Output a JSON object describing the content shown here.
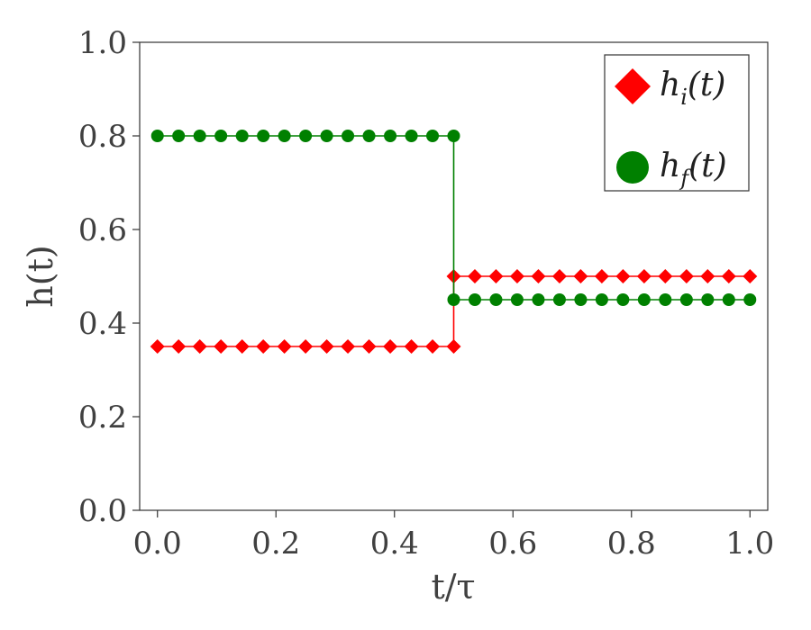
{
  "chart_data": {
    "type": "line",
    "xlabel": "t/τ",
    "ylabel": "h(t)",
    "xlim": [
      -0.03,
      1.03
    ],
    "ylim": [
      0.0,
      1.0
    ],
    "x_ticks": [
      "0.0",
      "0.2",
      "0.4",
      "0.6",
      "0.8",
      "1.0"
    ],
    "y_ticks": [
      "0.0",
      "0.2",
      "0.4",
      "0.6",
      "0.8",
      "1.0"
    ],
    "grid": false,
    "legend_position": "top-right",
    "series": [
      {
        "name_base": "h",
        "name_sub": "i",
        "name_suffix": "(t)",
        "color": "#ff0000",
        "marker": "diamond",
        "x": [
          0.0,
          0.0357,
          0.0714,
          0.1071,
          0.1429,
          0.1786,
          0.2143,
          0.25,
          0.2857,
          0.3214,
          0.3571,
          0.3929,
          0.4286,
          0.4643,
          0.5,
          0.5,
          0.5357,
          0.5714,
          0.6071,
          0.6429,
          0.6786,
          0.7143,
          0.75,
          0.7857,
          0.8214,
          0.8571,
          0.8929,
          0.9286,
          0.9643,
          1.0
        ],
        "y": [
          0.35,
          0.35,
          0.35,
          0.35,
          0.35,
          0.35,
          0.35,
          0.35,
          0.35,
          0.35,
          0.35,
          0.35,
          0.35,
          0.35,
          0.35,
          0.5,
          0.5,
          0.5,
          0.5,
          0.5,
          0.5,
          0.5,
          0.5,
          0.5,
          0.5,
          0.5,
          0.5,
          0.5,
          0.5,
          0.5
        ]
      },
      {
        "name_base": "h",
        "name_sub": "f",
        "name_suffix": "(t)",
        "color": "#008000",
        "marker": "circle",
        "x": [
          0.0,
          0.0357,
          0.0714,
          0.1071,
          0.1429,
          0.1786,
          0.2143,
          0.25,
          0.2857,
          0.3214,
          0.3571,
          0.3929,
          0.4286,
          0.4643,
          0.5,
          0.5,
          0.5357,
          0.5714,
          0.6071,
          0.6429,
          0.6786,
          0.7143,
          0.75,
          0.7857,
          0.8214,
          0.8571,
          0.8929,
          0.9286,
          0.9643,
          1.0
        ],
        "y": [
          0.8,
          0.8,
          0.8,
          0.8,
          0.8,
          0.8,
          0.8,
          0.8,
          0.8,
          0.8,
          0.8,
          0.8,
          0.8,
          0.8,
          0.8,
          0.45,
          0.45,
          0.45,
          0.45,
          0.45,
          0.45,
          0.45,
          0.45,
          0.45,
          0.45,
          0.45,
          0.45,
          0.45,
          0.45,
          0.45
        ]
      }
    ]
  }
}
